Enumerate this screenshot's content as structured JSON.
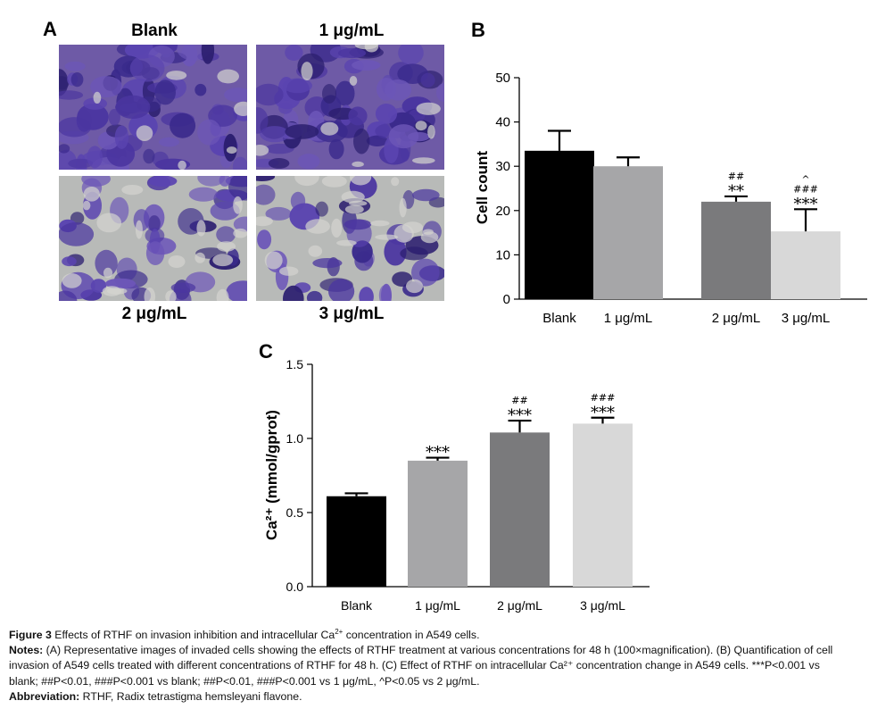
{
  "panelA": {
    "letter": "A",
    "images": [
      {
        "label": "Blank",
        "density": 0.95
      },
      {
        "label": "1 μg/mL",
        "density": 0.8
      },
      {
        "label": "2 μg/mL",
        "density": 0.5
      },
      {
        "label": "3 μg/mL",
        "density": 0.35
      }
    ]
  },
  "chart_data": [
    {
      "type": "bar",
      "panel": "B",
      "categories": [
        "Blank",
        "1 μg/mL",
        "2 μg/mL",
        "3 μg/mL"
      ],
      "values": [
        33.5,
        30,
        22,
        15.3
      ],
      "errors": [
        4.5,
        2,
        1.2,
        5
      ],
      "ylabel": "Cell count",
      "ylim": [
        0,
        50
      ],
      "yticks": [
        "0",
        "10",
        "20",
        "30",
        "40",
        "50"
      ],
      "colors": [
        "#000000",
        "#a6a6a8",
        "#7a7a7c",
        "#d8d8d8"
      ],
      "annotations": [
        [],
        [],
        [
          "##",
          "**"
        ],
        [
          "^",
          "###",
          "***"
        ]
      ]
    },
    {
      "type": "bar",
      "panel": "C",
      "categories": [
        "Blank",
        "1 μg/mL",
        "2 μg/mL",
        "3 μg/mL"
      ],
      "values": [
        0.61,
        0.85,
        1.04,
        1.1
      ],
      "errors": [
        0.02,
        0.02,
        0.08,
        0.04
      ],
      "ylabel": "Ca²⁺ (mmol/gprot)",
      "ylim": [
        0,
        1.5
      ],
      "yticks": [
        "0.0",
        "0.5",
        "1.0",
        "1.5"
      ],
      "colors": [
        "#000000",
        "#a6a6a8",
        "#7a7a7c",
        "#d8d8d8"
      ],
      "annotations": [
        [],
        [
          "***"
        ],
        [
          "##",
          "***"
        ],
        [
          "###",
          "***"
        ]
      ]
    }
  ],
  "caption": {
    "fig_label": "Figure 3",
    "fig_title_a": " Effects of RTHF on invasion inhibition and intracellular Ca",
    "fig_title_sup": "2+",
    "fig_title_b": " concentration in A549 cells.",
    "notes_label": "Notes:",
    "notes_line1": " (A) Representative images of invaded cells showing the effects of RTHF treatment at various concentrations for 48 h (100×magnification). (B) Quantification of cell",
    "notes_line2": "invasion of A549 cells treated with different concentrations of RTHF for 48 h. (C) Effect of RTHF on intracellular Ca²⁺ concentration change in A549 cells. ***P<0.001 vs",
    "notes_line3": "blank; ##P<0.01, ###P<0.001 vs blank; ##P<0.01, ###P<0.001 vs 1 μg/mL, ^P<0.05 vs 2 μg/mL.",
    "abbrev_label": "Abbreviation:",
    "abbrev_text": " RTHF, Radix tetrastigma hemsleyani flavone."
  }
}
